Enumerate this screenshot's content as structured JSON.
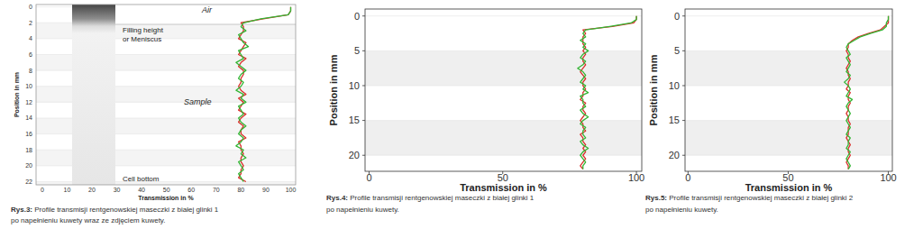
{
  "chart_data": [
    {
      "type": "line",
      "orientation": "horizontal",
      "grid": true,
      "x_label": "Transmission in %",
      "y_label": "Position in mm",
      "xlim": [
        -2.5,
        102
      ],
      "xticks": [
        0,
        10,
        20,
        30,
        40,
        50,
        60,
        70,
        80,
        90,
        100
      ],
      "ylim": [
        -0.3,
        22.4
      ],
      "yticks": [
        0,
        2,
        4,
        6,
        8,
        10,
        12,
        14,
        16,
        18,
        20,
        22
      ],
      "annotations": [
        "Air",
        "Filling height",
        "or Meniscus",
        "Sample",
        "Cell bottom"
      ],
      "caption_label": "Rys.3:",
      "caption": [
        "Profile transmisji rentgenowskiej maseczki z białej glinki 1",
        "po napełnieniu kuwety wraz ze zdjęciem kuwety."
      ],
      "y": [
        0,
        0.5,
        1,
        1.5,
        2,
        2.5,
        3,
        3.5,
        4,
        4.5,
        5,
        5.5,
        6,
        6.5,
        7,
        7.5,
        8,
        8.5,
        9,
        9.5,
        10,
        10.5,
        11,
        11.5,
        12,
        12.5,
        13,
        13.5,
        14,
        14.5,
        15,
        15.5,
        16,
        16.5,
        17,
        17.5,
        18,
        18.5,
        19,
        19.5,
        20,
        20.5,
        21,
        21.5,
        22
      ],
      "series": [
        {
          "color": "#d9302b",
          "values": [
            100,
            100,
            99,
            89,
            80,
            81,
            81,
            80,
            79,
            82,
            81,
            80,
            79,
            82,
            80,
            79,
            81,
            81,
            80,
            80,
            79,
            80,
            82,
            79,
            81,
            80,
            79,
            82,
            80,
            79,
            81,
            80,
            80,
            82,
            79,
            80,
            80,
            81,
            80,
            80,
            81,
            80,
            80,
            79,
            82
          ]
        },
        {
          "color": "#33b533",
          "values": [
            100,
            100,
            99,
            88,
            81,
            80,
            82,
            79,
            80,
            81,
            83,
            79,
            80,
            81,
            78,
            80,
            82,
            80,
            79,
            81,
            80,
            78,
            81,
            80,
            82,
            79,
            80,
            81,
            79,
            80,
            82,
            80,
            79,
            81,
            80,
            78,
            81,
            80,
            82,
            79,
            80,
            81,
            79,
            80,
            81
          ]
        }
      ]
    },
    {
      "type": "line",
      "orientation": "horizontal",
      "grid": true,
      "x_label": "Transmission in %",
      "y_label": "Position in mm",
      "xlim": [
        -1.5,
        102
      ],
      "xticks": [
        0,
        50,
        100
      ],
      "ylim": [
        -1,
        22.3
      ],
      "yticks": [
        0,
        5,
        10,
        15,
        20
      ],
      "caption_label": "Rys.4:",
      "caption": [
        "Profile transmisji rentgenowskiej maseczki z białej glinki 1",
        "po napełnieniu kuwety."
      ],
      "y": [
        0,
        0.5,
        1,
        1.5,
        2,
        2.5,
        3,
        3.5,
        4,
        4.5,
        5,
        5.5,
        6,
        6.5,
        7,
        7.5,
        8,
        8.5,
        9,
        9.5,
        10,
        10.5,
        11,
        11.5,
        12,
        12.5,
        13,
        13.5,
        14,
        14.5,
        15,
        15.5,
        16,
        16.5,
        17,
        17.5,
        18,
        18.5,
        19,
        19.5,
        20,
        20.5,
        21,
        21.5,
        22
      ],
      "series": [
        {
          "color": "#d9302b",
          "values": [
            100,
            100,
            99,
            91,
            80,
            81,
            80,
            80,
            80,
            81,
            80,
            81,
            80,
            80,
            81,
            80,
            79,
            80,
            81,
            80,
            80,
            81,
            80,
            80,
            79,
            81,
            80,
            80,
            81,
            80,
            79,
            80,
            80,
            81,
            79,
            80,
            80,
            81,
            80,
            81,
            80,
            81,
            80,
            79,
            80
          ]
        },
        {
          "color": "#33b533",
          "values": [
            100,
            100,
            98,
            90,
            81,
            80,
            81,
            79,
            81,
            80,
            82,
            80,
            79,
            81,
            80,
            78,
            80,
            81,
            80,
            79,
            81,
            80,
            82,
            79,
            80,
            80,
            81,
            79,
            80,
            82,
            80,
            79,
            81,
            80,
            80,
            81,
            79,
            80,
            82,
            80,
            79,
            80,
            81,
            80,
            80
          ]
        }
      ]
    },
    {
      "type": "line",
      "orientation": "horizontal",
      "grid": true,
      "x_label": "Transmission in %",
      "y_label": "Position in mm",
      "xlim": [
        -1.5,
        102
      ],
      "xticks": [
        0,
        50,
        100
      ],
      "ylim": [
        -1,
        22.3
      ],
      "yticks": [
        0,
        5,
        10,
        15,
        20
      ],
      "caption_label": "Rys.5:",
      "caption": [
        "Profile transmisji rentgenowskiej maseczki z białej glinki 2",
        "po napełnieniu kuwety."
      ],
      "y": [
        0,
        0.5,
        1,
        1.5,
        2,
        2.5,
        3,
        3.5,
        4,
        4.5,
        5,
        5.5,
        6,
        6.5,
        7,
        7.5,
        8,
        8.5,
        9,
        9.5,
        10,
        10.5,
        11,
        11.5,
        12,
        12.5,
        13,
        13.5,
        14,
        14.5,
        15,
        15.5,
        16,
        16.5,
        17,
        17.5,
        18,
        18.5,
        19,
        19.5,
        20,
        20.5,
        21,
        21.5,
        22
      ],
      "series": [
        {
          "color": "#d9302b",
          "values": [
            100,
            100,
            100,
            98,
            96,
            90,
            85,
            82,
            80,
            80,
            79,
            80,
            80,
            81,
            80,
            79,
            80,
            80,
            81,
            80,
            80,
            79,
            81,
            80,
            80,
            81,
            80,
            80,
            79,
            80,
            80,
            81,
            80,
            80,
            80,
            79,
            80,
            81,
            80,
            80,
            81,
            80,
            79,
            80,
            80
          ]
        },
        {
          "color": "#33b533",
          "values": [
            100,
            100,
            99,
            99,
            97,
            91,
            86,
            83,
            80,
            79,
            80,
            81,
            79,
            80,
            81,
            80,
            79,
            81,
            80,
            78,
            80,
            81,
            80,
            79,
            82,
            80,
            79,
            80,
            81,
            80,
            79,
            80,
            81,
            80,
            79,
            81,
            80,
            80,
            79,
            81,
            80,
            79,
            80,
            81,
            80
          ]
        }
      ]
    }
  ]
}
